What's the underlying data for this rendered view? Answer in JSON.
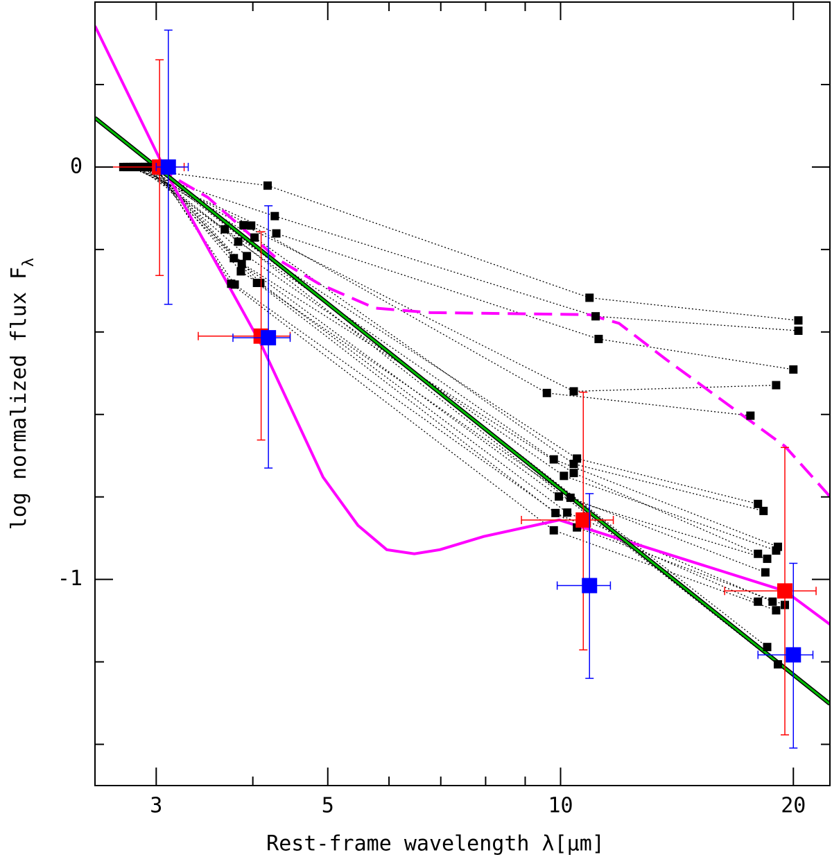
{
  "chart_data": {
    "type": "scatter",
    "xlabel": "Rest-frame wavelength λ[μm]",
    "ylabel": "log normalized flux F",
    "ylabel_sub": "λ",
    "xscale": "log",
    "xlim": [
      2.5,
      22.3
    ],
    "ylim": [
      -1.5,
      0.4
    ],
    "xticks": [
      3,
      5,
      10,
      20
    ],
    "xminor": [
      4,
      6,
      7,
      8,
      9
    ],
    "yticks": [
      0,
      -1
    ],
    "yminor": [
      0.2,
      -0.2,
      -0.4,
      -0.6,
      -0.8,
      -1.2,
      -1.4
    ],
    "source_color": "#000000",
    "sources": [
      {
        "x": [
          2.72,
          4.18,
          10.9,
          20.3
        ],
        "y": [
          0,
          -0.045,
          -0.317,
          -0.372
        ]
      },
      {
        "x": [
          2.75,
          4.27,
          11.1,
          20.3
        ],
        "y": [
          0,
          -0.119,
          -0.362,
          -0.397
        ]
      },
      {
        "x": [
          2.78,
          4.29,
          11.2,
          20.0
        ],
        "y": [
          0,
          -0.161,
          -0.417,
          -0.491
        ]
      },
      {
        "x": [
          2.8,
          3.89,
          10.4,
          19.0
        ],
        "y": [
          0,
          -0.141,
          -0.544,
          -0.529
        ]
      },
      {
        "x": [
          2.82,
          3.98,
          9.6,
          17.6
        ],
        "y": [
          0,
          -0.142,
          -0.548,
          -0.603
        ]
      },
      {
        "x": [
          2.84,
          3.68,
          10.5,
          18.0
        ],
        "y": [
          0,
          -0.151,
          -0.707,
          -0.817
        ]
      },
      {
        "x": [
          2.86,
          4.02,
          10.4,
          18.3
        ],
        "y": [
          0,
          -0.171,
          -0.72,
          -0.834
        ]
      },
      {
        "x": [
          2.88,
          3.83,
          9.8,
          19.1
        ],
        "y": [
          0,
          -0.181,
          -0.709,
          -0.921
        ]
      },
      {
        "x": [
          2.9,
          3.93,
          10.1,
          19.0
        ],
        "y": [
          0,
          -0.216,
          -0.749,
          -0.93
        ]
      },
      {
        "x": [
          2.92,
          3.78,
          10.4,
          18.0
        ],
        "y": [
          0,
          -0.221,
          -0.742,
          -0.938
        ]
      },
      {
        "x": [
          2.94,
          3.87,
          9.95,
          18.5
        ],
        "y": [
          0,
          -0.235,
          -0.799,
          -0.95
        ]
      },
      {
        "x": [
          2.96,
          3.86,
          10.3,
          18.4
        ],
        "y": [
          0,
          -0.253,
          -0.802,
          -0.983
        ]
      },
      {
        "x": [
          2.97,
          4.05,
          9.85,
          18.0
        ],
        "y": [
          0,
          -0.281,
          -0.839,
          -1.054
        ]
      },
      {
        "x": [
          2.98,
          4.09,
          10.2,
          18.8
        ],
        "y": [
          0,
          -0.281,
          -0.838,
          -1.054
        ]
      },
      {
        "x": [
          2.99,
          3.79,
          10.5,
          19.5
        ],
        "y": [
          0,
          -0.285,
          -0.874,
          -1.062
        ]
      },
      {
        "x": [
          3.0,
          3.75,
          9.8,
          19.0
        ],
        "y": [
          0,
          -0.283,
          -0.881,
          -1.075
        ]
      },
      {
        "x": [
          2.95,
          18.5
        ],
        "y": [
          0,
          -1.164
        ]
      },
      {
        "x": [
          2.9,
          19.1
        ],
        "y": [
          0,
          -1.206
        ]
      }
    ],
    "means": [
      {
        "color": "#ff0000",
        "x": [
          3.03,
          4.1,
          10.7,
          19.5
        ],
        "y": [
          0,
          -0.41,
          -0.856,
          -1.028
        ],
        "xlow": [
          2.5,
          3.4,
          8.9,
          16.3
        ],
        "xhigh": [
          3.26,
          4.47,
          11.7,
          21.4
        ],
        "ylow": [
          -0.263,
          -0.662,
          -1.171,
          -1.377
        ],
        "yhigh": [
          0.26,
          -0.157,
          -0.546,
          -0.68
        ]
      },
      {
        "color": "#0000ff",
        "x": [
          3.11,
          4.19,
          10.9,
          20.0
        ],
        "y": [
          0,
          -0.414,
          -1.015,
          -1.183
        ],
        "xlow": [
          3.0,
          3.77,
          9.9,
          18.0
        ],
        "xhigh": [
          3.3,
          4.47,
          11.6,
          21.2
        ],
        "ylow": [
          -0.333,
          -0.73,
          -1.24,
          -1.409
        ],
        "yhigh": [
          0.332,
          -0.094,
          -0.792,
          -0.961
        ]
      }
    ],
    "curves": [
      {
        "color": "#ff00ff",
        "style": "solid",
        "x": [
          2.5,
          3.11,
          4.1,
          4.93,
          5.47,
          5.96,
          6.47,
          6.98,
          7.95,
          9.96,
          19.5,
          22.3
        ],
        "y": [
          0.342,
          -0.023,
          -0.43,
          -0.752,
          -0.869,
          -0.928,
          -0.938,
          -0.928,
          -0.896,
          -0.856,
          -1.028,
          -1.109
        ]
      },
      {
        "color": "#ff00ff",
        "style": "dashed",
        "x": [
          3.0,
          3.5,
          4.31,
          4.87,
          5.75,
          6.78,
          10.9,
          11.9,
          13.7,
          19.5,
          22.3
        ],
        "y": [
          0,
          -0.074,
          -0.224,
          -0.283,
          -0.342,
          -0.353,
          -0.358,
          -0.379,
          -0.467,
          -0.677,
          -0.799
        ]
      },
      {
        "color": "#00c000",
        "outline": "#000000",
        "style": "solid",
        "x": [
          2.5,
          22.3
        ],
        "y": [
          0.119,
          -1.302
        ]
      }
    ]
  }
}
